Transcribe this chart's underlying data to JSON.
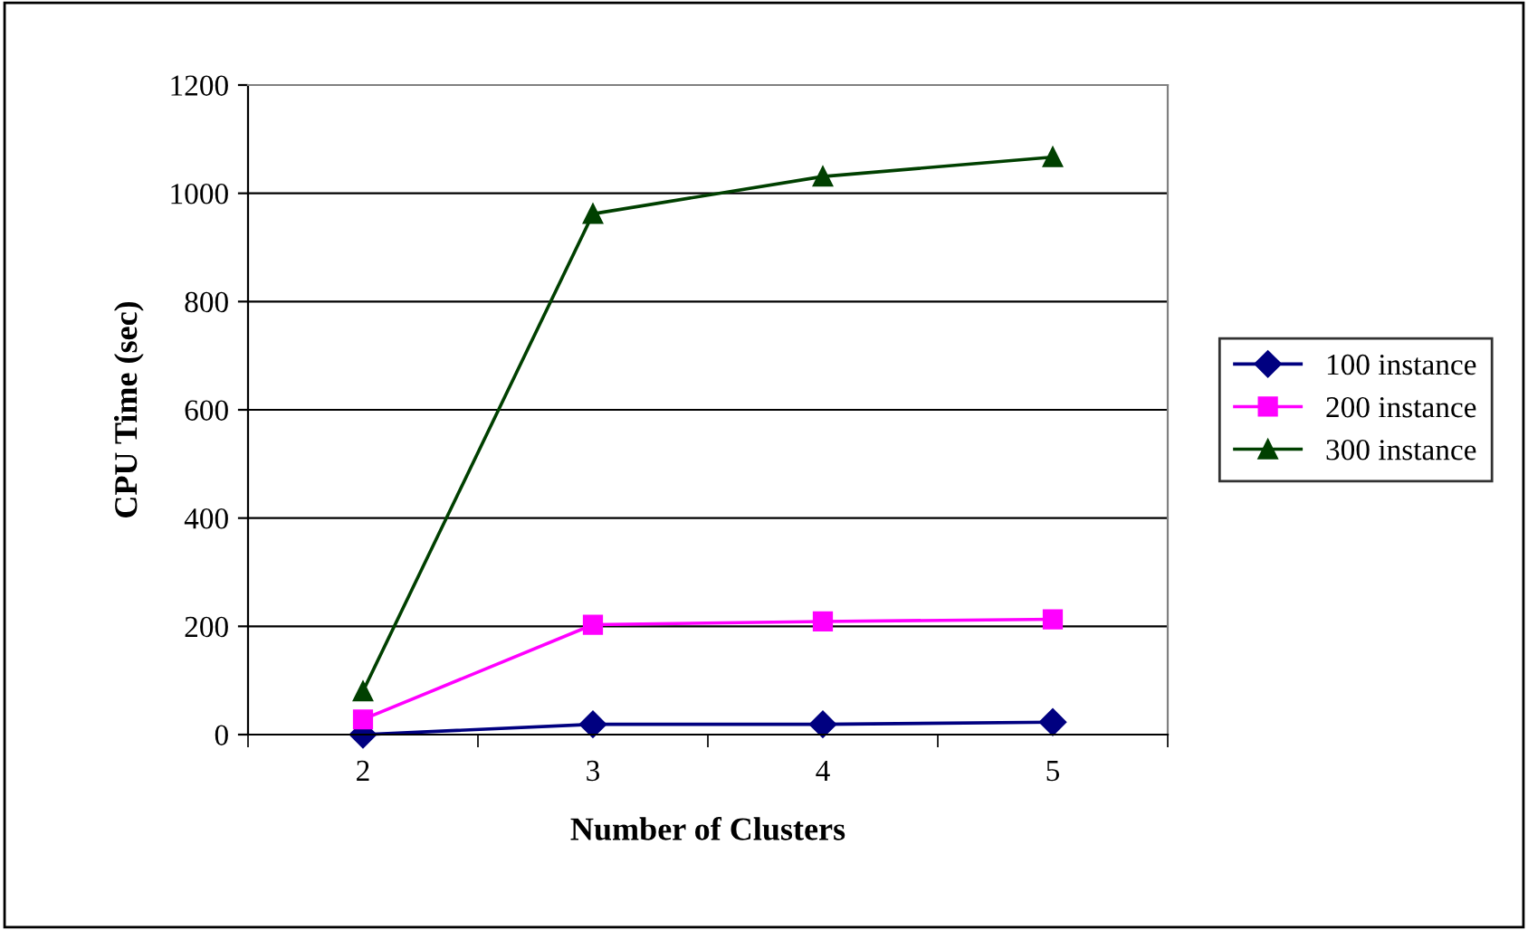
{
  "chart_data": {
    "type": "line",
    "xlabel": "Number of Clusters",
    "ylabel": "CPU Time (sec)",
    "categories": [
      "2",
      "3",
      "4",
      "5"
    ],
    "series": [
      {
        "name": "100 instance",
        "color": "#000080",
        "marker": "diamond",
        "values": [
          0,
          19,
          19,
          23
        ]
      },
      {
        "name": "200 instance",
        "color": "#ff00ff",
        "marker": "square",
        "values": [
          28,
          203,
          209,
          213
        ]
      },
      {
        "name": "300 instance",
        "color": "#004000",
        "marker": "triangle",
        "values": [
          80,
          962,
          1031,
          1067
        ]
      }
    ],
    "ylim": [
      0,
      1200
    ],
    "yticks": [
      0,
      200,
      400,
      600,
      800,
      1000,
      1200
    ],
    "grid": "y",
    "legend": "right",
    "line_style": "solid"
  }
}
